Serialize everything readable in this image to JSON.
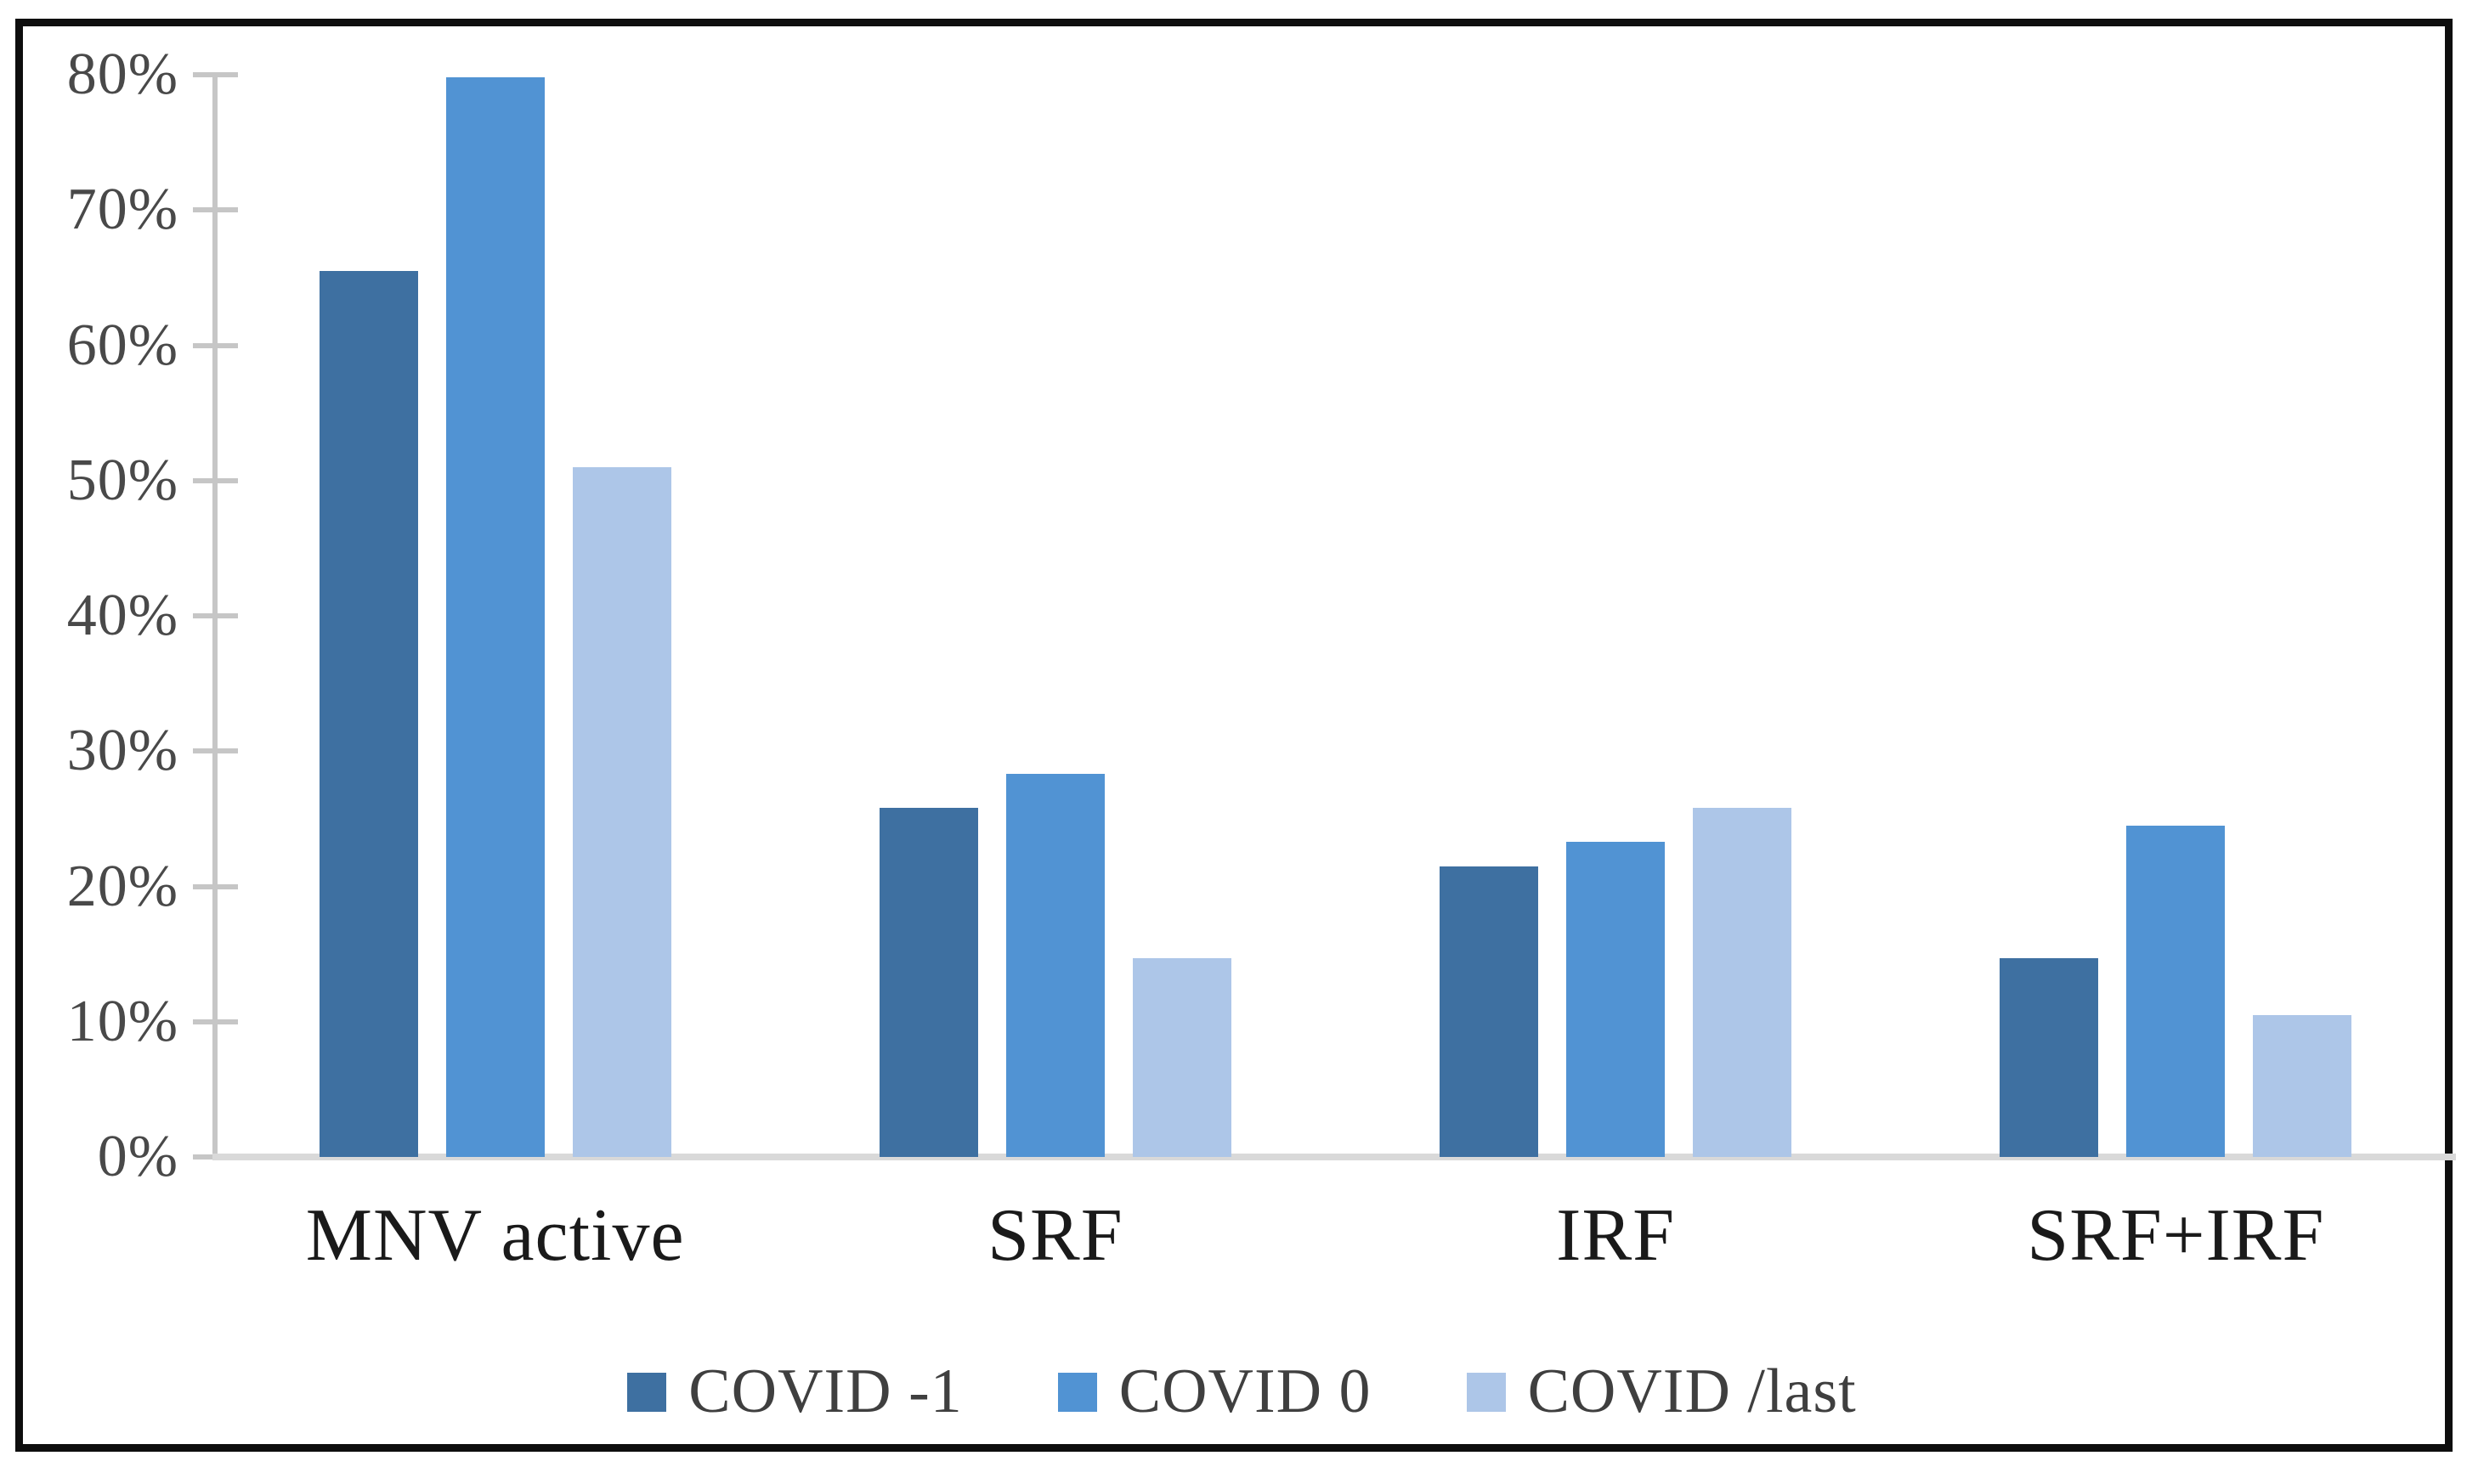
{
  "chart_data": {
    "type": "bar",
    "title": "",
    "categories": [
      "MNV active",
      "SRF",
      "IRF",
      "SRF+IRF"
    ],
    "series": [
      {
        "name": "COVID -1",
        "color": "#3E70A1",
        "values": [
          65.5,
          25.8,
          21.5,
          14.7
        ]
      },
      {
        "name": "COVID 0",
        "color": "#5193D3",
        "values": [
          79.8,
          28.3,
          23.3,
          24.5
        ]
      },
      {
        "name": "COVID /last",
        "color": "#ADC6E8",
        "values": [
          51.0,
          14.7,
          25.8,
          10.5
        ]
      }
    ],
    "y_axis": {
      "min": 0,
      "max": 80,
      "step": 10,
      "format": "percent",
      "ticks": [
        "0%",
        "10%",
        "20%",
        "30%",
        "40%",
        "50%",
        "60%",
        "70%",
        "80%"
      ]
    },
    "grid": false,
    "legend_position": "bottom",
    "frame_color": "#0e0e0e",
    "axis_line_color": "#c6c6c6",
    "baseline_color": "#d9d9d9"
  }
}
